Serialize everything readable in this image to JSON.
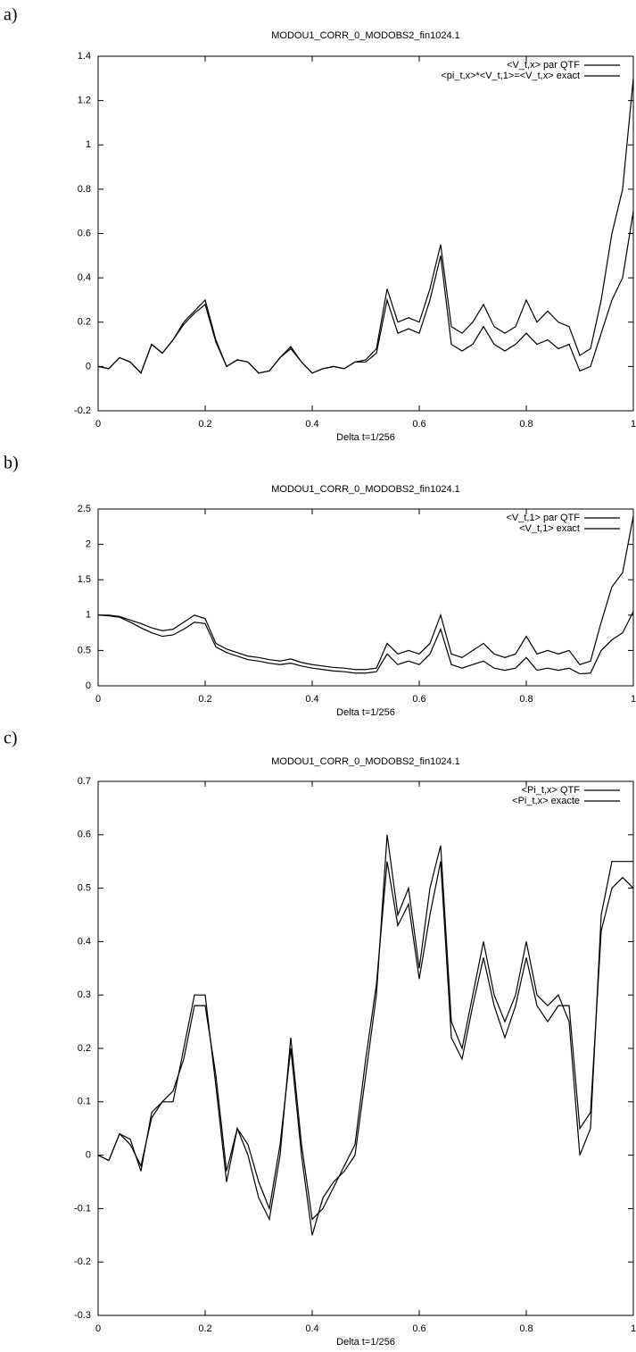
{
  "chart_data": [
    {
      "type": "line",
      "label": "a)",
      "title": "MODOU1_CORR_0_MODOBS2_fin1024.1",
      "x_label": "Delta t=1/256",
      "legend": "upper right",
      "x": [
        0,
        0.02,
        0.04,
        0.06,
        0.08,
        0.1,
        0.12,
        0.14,
        0.16,
        0.18,
        0.2,
        0.22,
        0.24,
        0.26,
        0.28,
        0.3,
        0.32,
        0.34,
        0.36,
        0.38,
        0.4,
        0.42,
        0.44,
        0.46,
        0.48,
        0.5,
        0.52,
        0.54,
        0.56,
        0.58,
        0.6,
        0.62,
        0.64,
        0.66,
        0.68,
        0.7,
        0.72,
        0.74,
        0.76,
        0.78,
        0.8,
        0.82,
        0.84,
        0.86,
        0.88,
        0.9,
        0.92,
        0.94,
        0.96,
        0.98,
        1
      ],
      "xlim": [
        0,
        1
      ],
      "xticks": [
        0,
        0.2,
        0.4,
        0.6,
        0.8,
        1
      ],
      "ylim": [
        -0.2,
        1.4
      ],
      "yticks": [
        -0.2,
        0,
        0.2,
        0.4,
        0.6,
        0.8,
        1,
        1.2,
        1.4
      ],
      "series": [
        {
          "name": "<V_t,x> par QTF",
          "color": "#000000",
          "values": [
            0,
            -0.01,
            0.04,
            0.02,
            -0.03,
            0.1,
            0.06,
            0.12,
            0.2,
            0.25,
            0.3,
            0.12,
            0,
            0.03,
            0.02,
            -0.03,
            -0.02,
            0.04,
            0.09,
            0.02,
            -0.03,
            -0.01,
            0,
            -0.01,
            0.02,
            0.03,
            0.08,
            0.35,
            0.2,
            0.22,
            0.2,
            0.35,
            0.55,
            0.18,
            0.15,
            0.2,
            0.28,
            0.18,
            0.15,
            0.18,
            0.3,
            0.2,
            0.25,
            0.2,
            0.18,
            0.05,
            0.08,
            0.3,
            0.6,
            0.8,
            1.3
          ]
        },
        {
          "name": "<pi_t,x>*<V_t,1>=<V_t,x> exact",
          "color": "#000000",
          "values": [
            0,
            -0.01,
            0.04,
            0.02,
            -0.03,
            0.1,
            0.06,
            0.12,
            0.19,
            0.24,
            0.28,
            0.11,
            0,
            0.03,
            0.02,
            -0.03,
            -0.02,
            0.04,
            0.08,
            0.02,
            -0.03,
            -0.01,
            0,
            -0.01,
            0.02,
            0.02,
            0.06,
            0.3,
            0.15,
            0.17,
            0.15,
            0.3,
            0.5,
            0.1,
            0.07,
            0.1,
            0.18,
            0.1,
            0.07,
            0.1,
            0.15,
            0.1,
            0.12,
            0.08,
            0.1,
            -0.02,
            0,
            0.15,
            0.3,
            0.4,
            0.7
          ]
        }
      ]
    },
    {
      "type": "line",
      "label": "b)",
      "title": "MODOU1_CORR_0_MODOBS2_fin1024.1",
      "x_label": "Delta t=1/256",
      "legend": "upper right",
      "x": [
        0,
        0.02,
        0.04,
        0.06,
        0.08,
        0.1,
        0.12,
        0.14,
        0.16,
        0.18,
        0.2,
        0.22,
        0.24,
        0.26,
        0.28,
        0.3,
        0.32,
        0.34,
        0.36,
        0.38,
        0.4,
        0.42,
        0.44,
        0.46,
        0.48,
        0.5,
        0.52,
        0.54,
        0.56,
        0.58,
        0.6,
        0.62,
        0.64,
        0.66,
        0.68,
        0.7,
        0.72,
        0.74,
        0.76,
        0.78,
        0.8,
        0.82,
        0.84,
        0.86,
        0.88,
        0.9,
        0.92,
        0.94,
        0.96,
        0.98,
        1
      ],
      "xlim": [
        0,
        1
      ],
      "xticks": [
        0,
        0.2,
        0.4,
        0.6,
        0.8,
        1
      ],
      "ylim": [
        0,
        2.5
      ],
      "yticks": [
        0,
        0.5,
        1,
        1.5,
        2,
        2.5
      ],
      "series": [
        {
          "name": "<V_t,1> par QTF",
          "color": "#000000",
          "values": [
            1,
            1,
            0.98,
            0.93,
            0.88,
            0.82,
            0.78,
            0.8,
            0.9,
            1,
            0.95,
            0.6,
            0.52,
            0.47,
            0.42,
            0.4,
            0.37,
            0.35,
            0.38,
            0.33,
            0.3,
            0.28,
            0.26,
            0.25,
            0.23,
            0.23,
            0.25,
            0.6,
            0.45,
            0.5,
            0.45,
            0.6,
            1,
            0.45,
            0.4,
            0.5,
            0.6,
            0.45,
            0.4,
            0.45,
            0.7,
            0.45,
            0.5,
            0.45,
            0.5,
            0.3,
            0.35,
            0.9,
            1.4,
            1.6,
            2.4
          ]
        },
        {
          "name": "<V_t,1> exact",
          "color": "#000000",
          "values": [
            1,
            0.99,
            0.97,
            0.9,
            0.82,
            0.75,
            0.7,
            0.72,
            0.8,
            0.9,
            0.88,
            0.55,
            0.47,
            0.42,
            0.37,
            0.35,
            0.32,
            0.3,
            0.32,
            0.28,
            0.25,
            0.23,
            0.21,
            0.2,
            0.18,
            0.18,
            0.2,
            0.45,
            0.3,
            0.35,
            0.3,
            0.45,
            0.8,
            0.3,
            0.25,
            0.3,
            0.35,
            0.25,
            0.22,
            0.25,
            0.4,
            0.22,
            0.25,
            0.22,
            0.25,
            0.17,
            0.18,
            0.5,
            0.65,
            0.75,
            1.05
          ]
        }
      ]
    },
    {
      "type": "line",
      "label": "c)",
      "title": "MODOU1_CORR_0_MODOBS2_fin1024.1",
      "x_label": "Delta t=1/256",
      "legend": "upper right",
      "x": [
        0,
        0.02,
        0.04,
        0.06,
        0.08,
        0.1,
        0.12,
        0.14,
        0.16,
        0.18,
        0.2,
        0.22,
        0.24,
        0.26,
        0.28,
        0.3,
        0.32,
        0.34,
        0.36,
        0.38,
        0.4,
        0.42,
        0.44,
        0.46,
        0.48,
        0.5,
        0.52,
        0.54,
        0.56,
        0.58,
        0.6,
        0.62,
        0.64,
        0.66,
        0.68,
        0.7,
        0.72,
        0.74,
        0.76,
        0.78,
        0.8,
        0.82,
        0.84,
        0.86,
        0.88,
        0.9,
        0.92,
        0.94,
        0.96,
        0.98,
        1
      ],
      "xlim": [
        0,
        1
      ],
      "xticks": [
        0,
        0.2,
        0.4,
        0.6,
        0.8,
        1
      ],
      "ylim": [
        -0.3,
        0.7
      ],
      "yticks": [
        -0.3,
        -0.2,
        -0.1,
        0,
        0.1,
        0.2,
        0.3,
        0.4,
        0.5,
        0.6,
        0.7
      ],
      "series": [
        {
          "name": "<Pi_t,x> QTF",
          "color": "#000000",
          "values": [
            0,
            -0.01,
            0.04,
            0.03,
            -0.03,
            0.08,
            0.1,
            0.1,
            0.2,
            0.3,
            0.3,
            0.13,
            -0.05,
            0.05,
            0.02,
            -0.05,
            -0.1,
            0.02,
            0.2,
            0,
            -0.15,
            -0.08,
            -0.05,
            -0.03,
            0,
            0.15,
            0.3,
            0.6,
            0.45,
            0.5,
            0.35,
            0.5,
            0.58,
            0.25,
            0.2,
            0.3,
            0.4,
            0.3,
            0.25,
            0.3,
            0.4,
            0.3,
            0.28,
            0.3,
            0.25,
            0,
            0.05,
            0.45,
            0.55,
            0.55,
            0.55
          ]
        },
        {
          "name": "<Pi_t,x> exacte",
          "color": "#000000",
          "values": [
            0,
            -0.01,
            0.04,
            0.02,
            -0.02,
            0.07,
            0.1,
            0.12,
            0.18,
            0.28,
            0.28,
            0.15,
            -0.03,
            0.05,
            0,
            -0.08,
            -0.12,
            0,
            0.22,
            0.02,
            -0.12,
            -0.1,
            -0.06,
            -0.02,
            0.02,
            0.18,
            0.32,
            0.55,
            0.43,
            0.47,
            0.33,
            0.45,
            0.55,
            0.22,
            0.18,
            0.28,
            0.37,
            0.28,
            0.22,
            0.28,
            0.37,
            0.28,
            0.25,
            0.28,
            0.28,
            0.05,
            0.08,
            0.42,
            0.5,
            0.52,
            0.5
          ]
        }
      ]
    }
  ]
}
